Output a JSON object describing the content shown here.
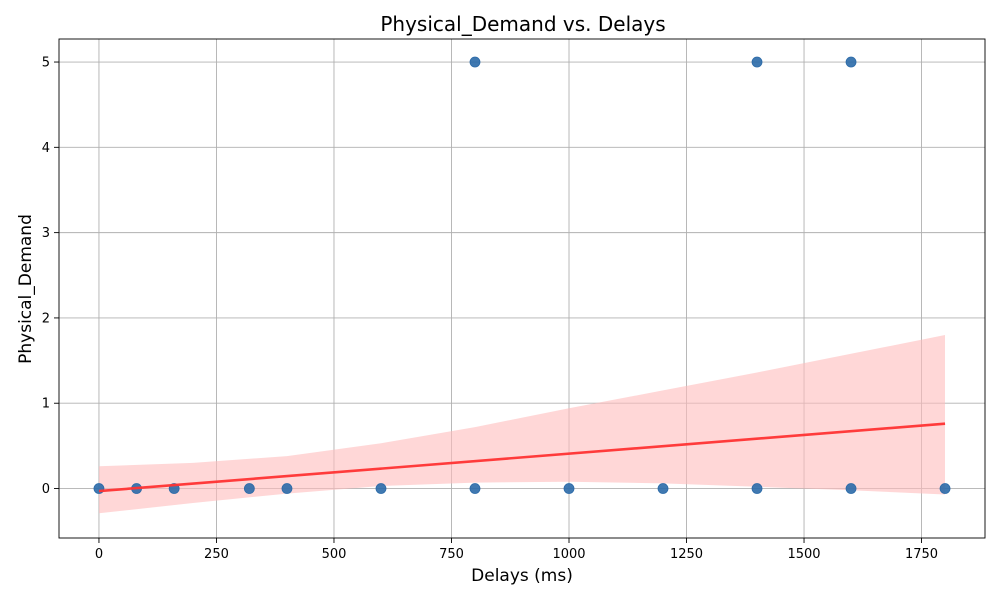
{
  "chart_data": {
    "type": "scatter",
    "title": "Physical_Demand vs. Delays",
    "xlabel": "Delays (ms)",
    "ylabel": "Physical_Demand",
    "xlim": [
      -85,
      1885
    ],
    "ylim": [
      -0.58,
      5.27
    ],
    "xticks": [
      0,
      250,
      500,
      750,
      1000,
      1250,
      1500,
      1750
    ],
    "yticks": [
      0,
      1,
      2,
      3,
      4,
      5
    ],
    "grid": true,
    "points": [
      {
        "x": 0,
        "y": 0
      },
      {
        "x": 80,
        "y": 0
      },
      {
        "x": 160,
        "y": 0
      },
      {
        "x": 320,
        "y": 0
      },
      {
        "x": 400,
        "y": 0
      },
      {
        "x": 600,
        "y": 0
      },
      {
        "x": 800,
        "y": 0
      },
      {
        "x": 1000,
        "y": 0
      },
      {
        "x": 1200,
        "y": 0
      },
      {
        "x": 1400,
        "y": 0
      },
      {
        "x": 1600,
        "y": 0
      },
      {
        "x": 1800,
        "y": 0
      },
      {
        "x": 800,
        "y": 5
      },
      {
        "x": 1400,
        "y": 5
      },
      {
        "x": 1600,
        "y": 5
      }
    ],
    "regression": {
      "x": [
        0,
        1800
      ],
      "y": [
        -0.03,
        0.76
      ],
      "color": "#ff3333"
    },
    "confidence_band": {
      "x": [
        0,
        200,
        400,
        600,
        800,
        1000,
        1200,
        1400,
        1600,
        1800
      ],
      "lower": [
        -0.29,
        -0.17,
        -0.06,
        0.03,
        0.07,
        0.08,
        0.06,
        0.02,
        -0.02,
        -0.07
      ],
      "upper": [
        0.26,
        0.3,
        0.38,
        0.53,
        0.72,
        0.94,
        1.15,
        1.36,
        1.58,
        1.8
      ],
      "color": "#ffbcbc"
    },
    "point_color": "#2b6aa8"
  }
}
